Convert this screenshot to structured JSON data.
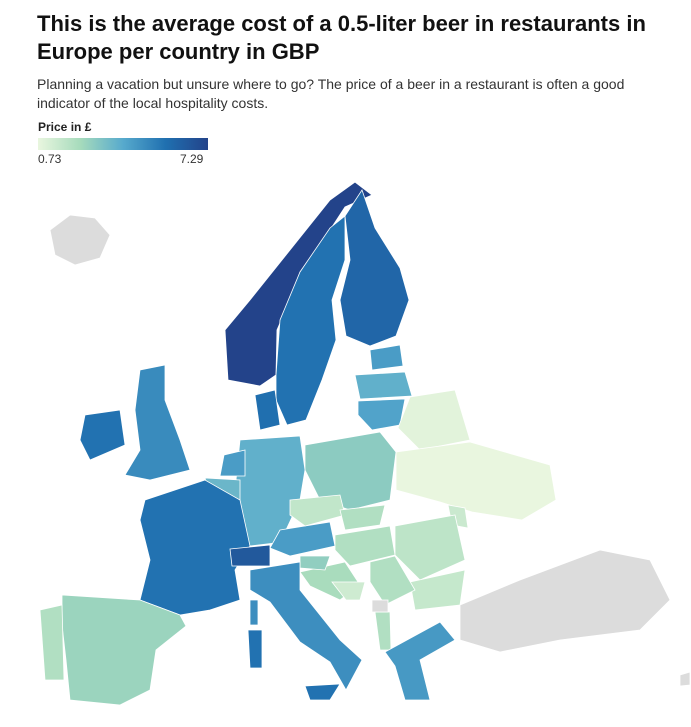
{
  "title": "This is the average cost of a 0.5-liter beer in restaurants in Europe per country in GBP",
  "subtitle": "Planning a vacation but unsure where to go? The price of a beer in a restaurant is often a good indicator of the local hospitality costs.",
  "legend": {
    "title": "Price in £",
    "min": "0.73",
    "max": "7.29",
    "colors": [
      "#e9f6df",
      "#a6dbbc",
      "#57aacd",
      "#2070b0",
      "#23438a"
    ],
    "no_data_color": "#dcdcdc"
  },
  "countries": [
    {
      "name": "Norway",
      "value": 7.29
    },
    {
      "name": "Sweden",
      "value": 5.6
    },
    {
      "name": "Finland",
      "value": 6.0
    },
    {
      "name": "Estonia",
      "value": 4.4
    },
    {
      "name": "Latvia",
      "value": 3.8
    },
    {
      "name": "Lithuania",
      "value": 4.2
    },
    {
      "name": "Belarus",
      "value": 0.9
    },
    {
      "name": "Ukraine",
      "value": 0.73
    },
    {
      "name": "Moldova",
      "value": 1.5
    },
    {
      "name": "Poland",
      "value": 2.9
    },
    {
      "name": "Germany",
      "value": 3.8
    },
    {
      "name": "Denmark",
      "value": 5.7
    },
    {
      "name": "Netherlands",
      "value": 4.4
    },
    {
      "name": "Belgium",
      "value": 3.6
    },
    {
      "name": "France",
      "value": 5.6
    },
    {
      "name": "Switzerland",
      "value": 6.5
    },
    {
      "name": "Austria",
      "value": 4.4
    },
    {
      "name": "Czechia",
      "value": 1.7
    },
    {
      "name": "Slovakia",
      "value": 2.1
    },
    {
      "name": "Hungary",
      "value": 2.1
    },
    {
      "name": "Romania",
      "value": 1.8
    },
    {
      "name": "Bulgaria",
      "value": 1.6
    },
    {
      "name": "Serbia",
      "value": 2.1
    },
    {
      "name": "Croatia",
      "value": 2.3
    },
    {
      "name": "Slovenia",
      "value": 2.8
    },
    {
      "name": "Bosnia and Herzegovina",
      "value": 1.4
    },
    {
      "name": "Albania",
      "value": 2.1
    },
    {
      "name": "Greece",
      "value": 4.5
    },
    {
      "name": "Italy",
      "value": 4.8
    },
    {
      "name": "Sicily",
      "value": 5.6
    },
    {
      "name": "Sardinia",
      "value": 5.6
    },
    {
      "name": "Corsica",
      "value": 4.8
    },
    {
      "name": "Spain",
      "value": 2.6
    },
    {
      "name": "Portugal",
      "value": 2.1
    },
    {
      "name": "United Kingdom",
      "value": 4.9
    },
    {
      "name": "Ireland",
      "value": 5.6
    },
    {
      "name": "Iceland",
      "value": null
    },
    {
      "name": "Turkey",
      "value": null
    },
    {
      "name": "Kosovo",
      "value": null
    },
    {
      "name": "Cyprus",
      "value": null
    }
  ]
}
